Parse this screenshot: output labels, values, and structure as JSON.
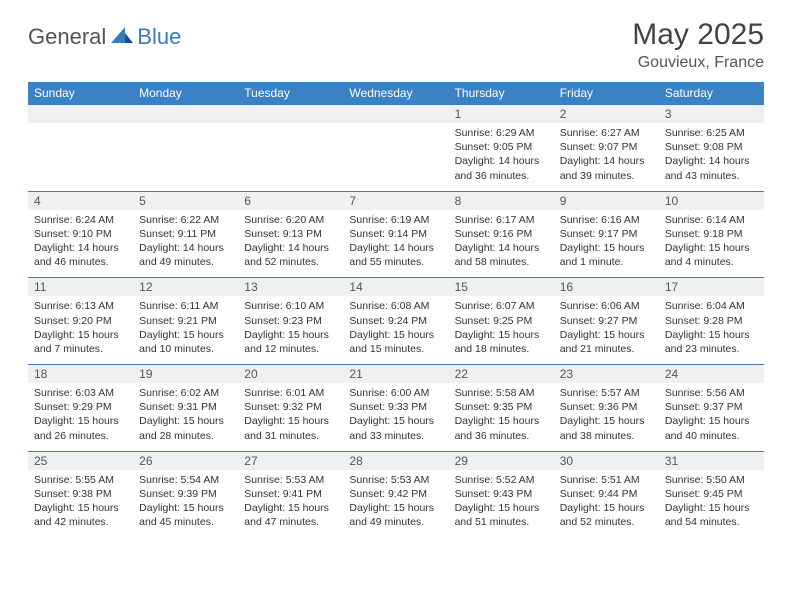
{
  "brand": {
    "part1": "General",
    "part2": "Blue"
  },
  "title": "May 2025",
  "location": "Gouvieux, France",
  "colors": {
    "header_bg": "#3b82c4",
    "header_text": "#ffffff",
    "daynum_bg": "#eef0f1",
    "row_border": "#3b7bbf",
    "body_text": "#333333",
    "title_text": "#444444",
    "logo_gray": "#555555",
    "logo_blue": "#3b7bbf",
    "page_bg": "#ffffff"
  },
  "typography": {
    "title_fontsize": 30,
    "location_fontsize": 16,
    "dayhead_fontsize": 12,
    "daynum_fontsize": 12,
    "cell_fontsize": 10.5
  },
  "day_headers": [
    "Sunday",
    "Monday",
    "Tuesday",
    "Wednesday",
    "Thursday",
    "Friday",
    "Saturday"
  ],
  "weeks": [
    {
      "nums": [
        "",
        "",
        "",
        "",
        "1",
        "2",
        "3"
      ],
      "cells": [
        "",
        "",
        "",
        "",
        "Sunrise: 6:29 AM\nSunset: 9:05 PM\nDaylight: 14 hours and 36 minutes.",
        "Sunrise: 6:27 AM\nSunset: 9:07 PM\nDaylight: 14 hours and 39 minutes.",
        "Sunrise: 6:25 AM\nSunset: 9:08 PM\nDaylight: 14 hours and 43 minutes."
      ]
    },
    {
      "nums": [
        "4",
        "5",
        "6",
        "7",
        "8",
        "9",
        "10"
      ],
      "cells": [
        "Sunrise: 6:24 AM\nSunset: 9:10 PM\nDaylight: 14 hours and 46 minutes.",
        "Sunrise: 6:22 AM\nSunset: 9:11 PM\nDaylight: 14 hours and 49 minutes.",
        "Sunrise: 6:20 AM\nSunset: 9:13 PM\nDaylight: 14 hours and 52 minutes.",
        "Sunrise: 6:19 AM\nSunset: 9:14 PM\nDaylight: 14 hours and 55 minutes.",
        "Sunrise: 6:17 AM\nSunset: 9:16 PM\nDaylight: 14 hours and 58 minutes.",
        "Sunrise: 6:16 AM\nSunset: 9:17 PM\nDaylight: 15 hours and 1 minute.",
        "Sunrise: 6:14 AM\nSunset: 9:18 PM\nDaylight: 15 hours and 4 minutes."
      ]
    },
    {
      "nums": [
        "11",
        "12",
        "13",
        "14",
        "15",
        "16",
        "17"
      ],
      "cells": [
        "Sunrise: 6:13 AM\nSunset: 9:20 PM\nDaylight: 15 hours and 7 minutes.",
        "Sunrise: 6:11 AM\nSunset: 9:21 PM\nDaylight: 15 hours and 10 minutes.",
        "Sunrise: 6:10 AM\nSunset: 9:23 PM\nDaylight: 15 hours and 12 minutes.",
        "Sunrise: 6:08 AM\nSunset: 9:24 PM\nDaylight: 15 hours and 15 minutes.",
        "Sunrise: 6:07 AM\nSunset: 9:25 PM\nDaylight: 15 hours and 18 minutes.",
        "Sunrise: 6:06 AM\nSunset: 9:27 PM\nDaylight: 15 hours and 21 minutes.",
        "Sunrise: 6:04 AM\nSunset: 9:28 PM\nDaylight: 15 hours and 23 minutes."
      ]
    },
    {
      "nums": [
        "18",
        "19",
        "20",
        "21",
        "22",
        "23",
        "24"
      ],
      "cells": [
        "Sunrise: 6:03 AM\nSunset: 9:29 PM\nDaylight: 15 hours and 26 minutes.",
        "Sunrise: 6:02 AM\nSunset: 9:31 PM\nDaylight: 15 hours and 28 minutes.",
        "Sunrise: 6:01 AM\nSunset: 9:32 PM\nDaylight: 15 hours and 31 minutes.",
        "Sunrise: 6:00 AM\nSunset: 9:33 PM\nDaylight: 15 hours and 33 minutes.",
        "Sunrise: 5:58 AM\nSunset: 9:35 PM\nDaylight: 15 hours and 36 minutes.",
        "Sunrise: 5:57 AM\nSunset: 9:36 PM\nDaylight: 15 hours and 38 minutes.",
        "Sunrise: 5:56 AM\nSunset: 9:37 PM\nDaylight: 15 hours and 40 minutes."
      ]
    },
    {
      "nums": [
        "25",
        "26",
        "27",
        "28",
        "29",
        "30",
        "31"
      ],
      "cells": [
        "Sunrise: 5:55 AM\nSunset: 9:38 PM\nDaylight: 15 hours and 42 minutes.",
        "Sunrise: 5:54 AM\nSunset: 9:39 PM\nDaylight: 15 hours and 45 minutes.",
        "Sunrise: 5:53 AM\nSunset: 9:41 PM\nDaylight: 15 hours and 47 minutes.",
        "Sunrise: 5:53 AM\nSunset: 9:42 PM\nDaylight: 15 hours and 49 minutes.",
        "Sunrise: 5:52 AM\nSunset: 9:43 PM\nDaylight: 15 hours and 51 minutes.",
        "Sunrise: 5:51 AM\nSunset: 9:44 PM\nDaylight: 15 hours and 52 minutes.",
        "Sunrise: 5:50 AM\nSunset: 9:45 PM\nDaylight: 15 hours and 54 minutes."
      ]
    }
  ]
}
